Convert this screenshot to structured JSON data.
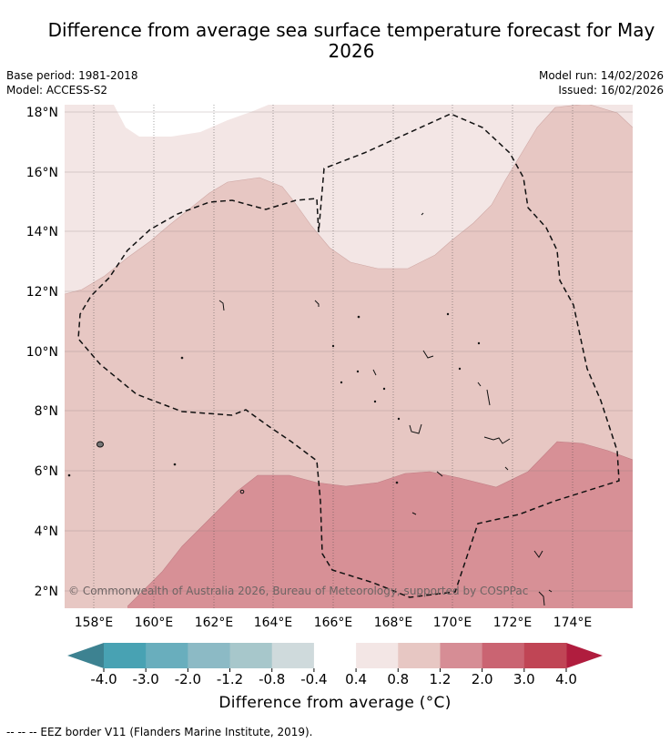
{
  "title": "Difference from average sea surface temperature forecast for May 2026",
  "meta": {
    "base_period": "Base period: 1981-2018",
    "model": "Model: ACCESS-S2",
    "model_run": "Model run: 14/02/2026",
    "issued": "Issued: 16/02/2026"
  },
  "map": {
    "lat_labels": [
      "18°N",
      "16°N",
      "14°N",
      "12°N",
      "10°N",
      "8°N",
      "6°N",
      "4°N",
      "2°N"
    ],
    "lon_labels": [
      "158°E",
      "160°E",
      "162°E",
      "164°E",
      "166°E",
      "168°E",
      "170°E",
      "172°E",
      "174°E"
    ],
    "copyright": "© Commonwealth of Australia 2026, Bureau of Meteorology, supported by COSPPac",
    "regions": [
      {
        "name": "0.4 to 0.8 °C",
        "color": "#f3e6e5"
      },
      {
        "name": "0.8 to 1.2 °C",
        "color": "#e7c7c3"
      },
      {
        "name": "1.2 to 2.0 °C",
        "color": "#d79096"
      }
    ]
  },
  "colorbar": {
    "ticks": [
      "-4.0",
      "-3.0",
      "-2.0",
      "-1.2",
      "-0.8",
      "-0.4",
      "0.4",
      "0.8",
      "1.2",
      "2.0",
      "3.0",
      "4.0"
    ],
    "colors": [
      "#48a2b3",
      "#69aebd",
      "#8cbac5",
      "#a7c7cb",
      "#cfdadc",
      "#ffffff",
      "#f3e6e5",
      "#e7c7c3",
      "#d68d95",
      "#ca6472",
      "#c04555"
    ],
    "under_color": "#3d8291",
    "over_color": "#b01d3e",
    "title": "Difference from average (°C)"
  },
  "footer": "--  --  -- EEZ border V11 (Flanders Marine Institute, 2019)."
}
